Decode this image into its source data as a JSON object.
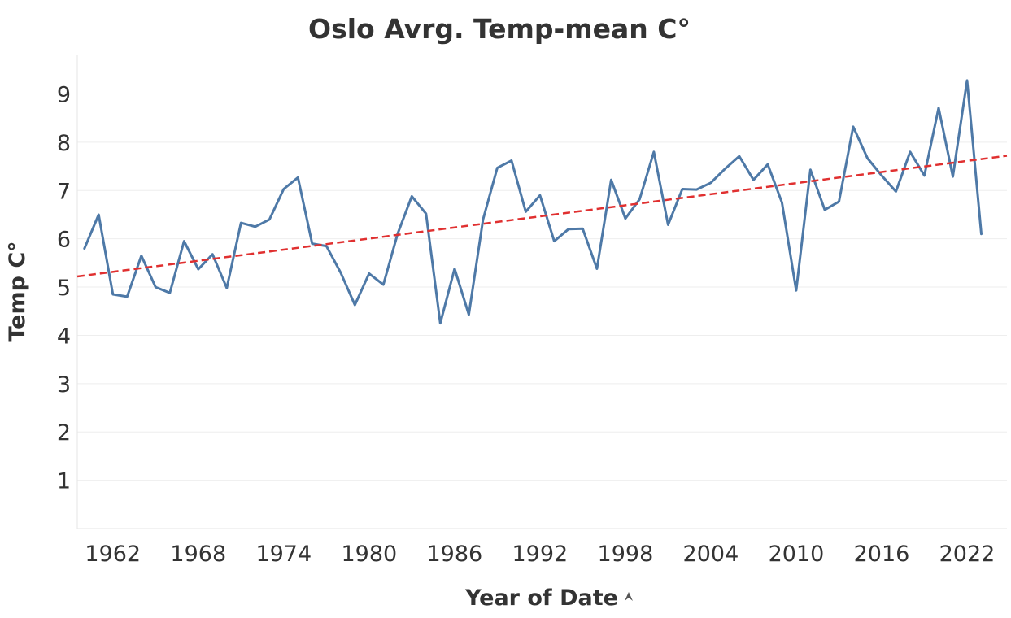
{
  "chart_data": {
    "type": "line",
    "title": "Oslo Avrg. Temp-mean C°",
    "xlabel": "Year of Date",
    "ylabel": "Temp C°",
    "xlim": [
      1959.5,
      2024.8
    ],
    "ylim": [
      0,
      9.8
    ],
    "x_ticks": [
      1962,
      1968,
      1974,
      1980,
      1986,
      1992,
      1998,
      2004,
      2010,
      2016,
      2022
    ],
    "y_ticks": [
      1,
      2,
      3,
      4,
      5,
      6,
      7,
      8,
      9
    ],
    "grid": true,
    "colors": {
      "series": "#4e79a7",
      "trend": "#e03030"
    },
    "series": [
      {
        "x": [
          1960,
          1961,
          1962,
          1963,
          1964,
          1965,
          1966,
          1967,
          1968,
          1969,
          1970,
          1971,
          1972,
          1973,
          1974,
          1975,
          1976,
          1977,
          1978,
          1979,
          1980,
          1981,
          1982,
          1983,
          1984,
          1985,
          1986,
          1987,
          1988,
          1989,
          1990,
          1991,
          1992,
          1993,
          1994,
          1995,
          1996,
          1997,
          1998,
          1999,
          2000,
          2001,
          2002,
          2003,
          2004,
          2005,
          2006,
          2007,
          2008,
          2009,
          2010,
          2011,
          2012,
          2013,
          2014,
          2015,
          2016,
          2017,
          2018,
          2019,
          2020,
          2021,
          2022,
          2023
        ],
        "values": [
          5.8,
          6.5,
          4.85,
          4.8,
          5.65,
          5.0,
          4.88,
          5.95,
          5.37,
          5.68,
          4.98,
          6.33,
          6.25,
          6.4,
          7.03,
          7.27,
          5.9,
          5.85,
          5.3,
          4.63,
          5.28,
          5.05,
          6.1,
          6.88,
          6.52,
          4.25,
          5.38,
          4.43,
          6.4,
          7.47,
          7.62,
          6.56,
          6.9,
          5.95,
          6.2,
          6.21,
          5.38,
          7.22,
          6.42,
          6.82,
          7.8,
          6.29,
          7.03,
          7.02,
          7.16,
          7.45,
          7.71,
          7.22,
          7.54,
          6.75,
          4.93,
          7.43,
          6.6,
          6.77,
          8.32,
          7.67,
          7.31,
          6.98,
          7.8,
          7.31,
          8.71,
          7.29,
          9.28,
          6.1
        ]
      }
    ],
    "trend_line": {
      "style": "dashed",
      "start": [
        1959.5,
        5.22
      ],
      "end": [
        2024.8,
        7.72
      ]
    }
  }
}
